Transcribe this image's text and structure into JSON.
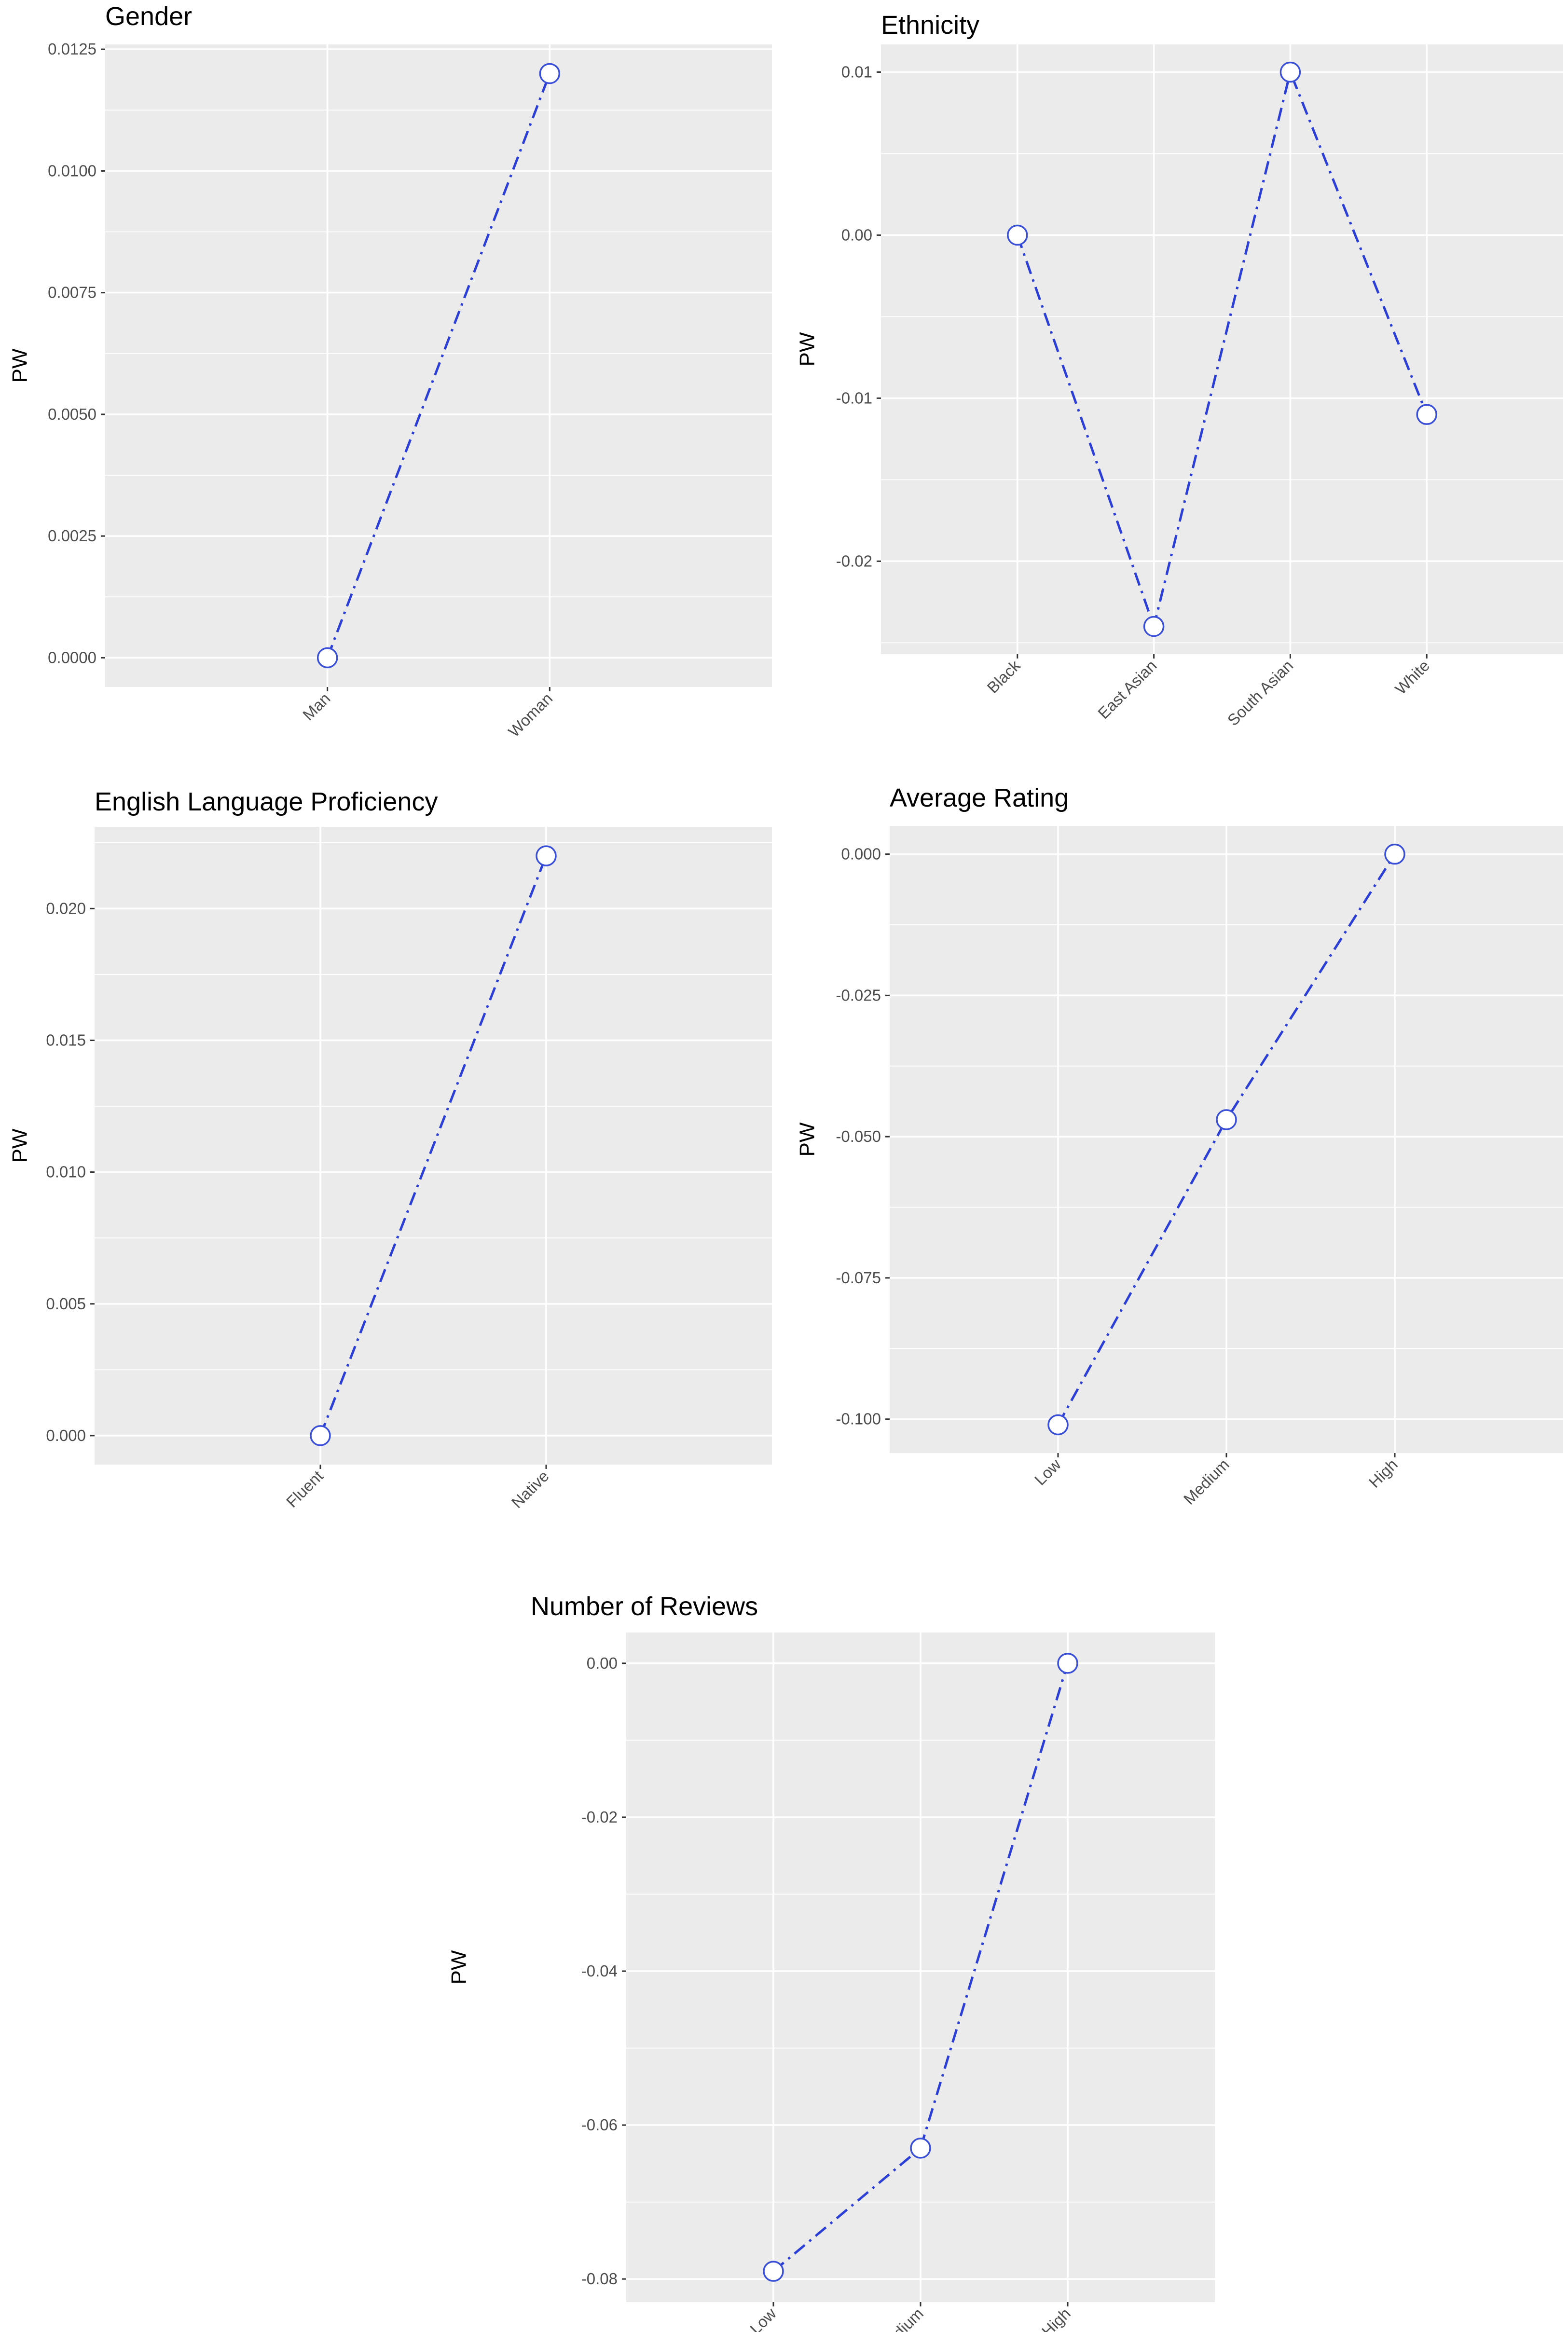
{
  "colors": {
    "line": "#2b3fd8",
    "point_stroke": "#3a4fd8",
    "panel": "#ebebeb",
    "grid": "#ffffff"
  },
  "chart_data": [
    {
      "type": "line",
      "title": "Gender",
      "xlabel": "",
      "ylabel": "PW",
      "categories": [
        "Man",
        "Woman"
      ],
      "values": [
        0.0,
        0.012
      ],
      "ylim": [
        -0.0006,
        0.0126
      ],
      "yticks": [
        0.0,
        0.0025,
        0.005,
        0.0075,
        0.01,
        0.0125
      ],
      "ytick_labels": [
        "0.0000",
        "0.0025",
        "0.0050",
        "0.0075",
        "0.0100",
        "0.0125"
      ],
      "grid": true,
      "legend": "none"
    },
    {
      "type": "line",
      "title": "Ethnicity",
      "xlabel": "",
      "ylabel": "PW",
      "categories": [
        "Black",
        "East Asian",
        "South Asian",
        "White"
      ],
      "values": [
        0.0,
        -0.024,
        0.01,
        -0.011
      ],
      "ylim": [
        -0.0257,
        0.0117
      ],
      "yticks": [
        -0.02,
        -0.01,
        0.0,
        0.01
      ],
      "ytick_labels": [
        "-0.02",
        "-0.01",
        "0.00",
        "0.01"
      ],
      "grid": true,
      "legend": "none"
    },
    {
      "type": "line",
      "title": "English Language Proficiency",
      "xlabel": "",
      "ylabel": "PW",
      "categories": [
        "Fluent",
        "Native"
      ],
      "values": [
        0.0,
        0.022
      ],
      "ylim": [
        -0.0011,
        0.0231
      ],
      "yticks": [
        0.0,
        0.005,
        0.01,
        0.015,
        0.02
      ],
      "ytick_labels": [
        "0.000",
        "0.005",
        "0.010",
        "0.015",
        "0.020"
      ],
      "grid": true,
      "legend": "none"
    },
    {
      "type": "line",
      "title": "Average Rating",
      "xlabel": "",
      "ylabel": "PW",
      "categories": [
        "Low",
        "Medium",
        "High"
      ],
      "values": [
        -0.101,
        -0.047,
        0.0
      ],
      "ylim": [
        -0.106,
        0.005
      ],
      "yticks": [
        -0.1,
        -0.075,
        -0.05,
        -0.025,
        0.0
      ],
      "ytick_labels": [
        "-0.100",
        "-0.075",
        "-0.050",
        "-0.025",
        "0.000"
      ],
      "grid": true,
      "legend": "none"
    },
    {
      "type": "line",
      "title": "Number of Reviews",
      "xlabel": "",
      "ylabel": "PW",
      "categories": [
        "Low",
        "Medium",
        "High"
      ],
      "values": [
        -0.079,
        -0.063,
        0.0
      ],
      "ylim": [
        -0.083,
        0.004
      ],
      "yticks": [
        -0.08,
        -0.06,
        -0.04,
        -0.02,
        0.0
      ],
      "ytick_labels": [
        "-0.08",
        "-0.06",
        "-0.04",
        "-0.02",
        "0.00"
      ],
      "grid": true,
      "legend": "none"
    }
  ]
}
